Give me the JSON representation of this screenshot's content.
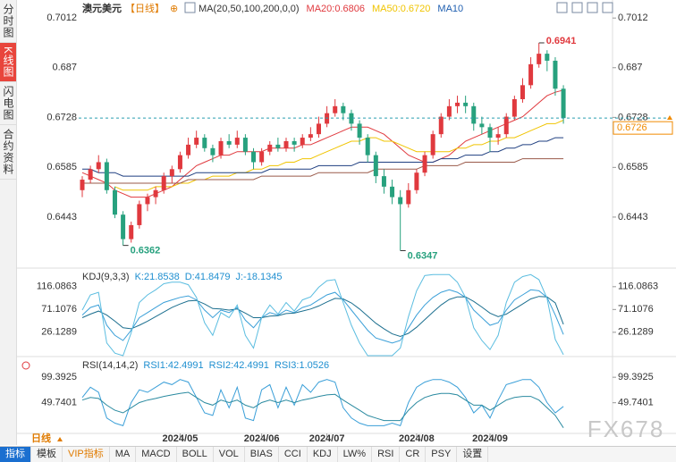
{
  "header": {
    "symbol": "澳元美元",
    "period": "【日线】",
    "legend": [
      {
        "text": "MA(20,50,100,200,0,0)",
        "color": "#333333"
      },
      {
        "text": "MA20:0.6806",
        "color": "#e0393e"
      },
      {
        "text": "MA50:0.6720",
        "color": "#f0c400"
      },
      {
        "text": "MA10",
        "color": "#1f5fb0"
      }
    ]
  },
  "side_tabs": [
    "分时图",
    "K线图",
    "闪电图",
    "合约资料"
  ],
  "period_label": "日线",
  "footer": {
    "tabs": [
      "指标",
      "模板",
      "VIP指标",
      "MA",
      "MACD",
      "BOLL",
      "VOL",
      "BIAS",
      "CCI",
      "KDJ",
      "LW%",
      "RSI",
      "CR",
      "PSY",
      "设置"
    ]
  },
  "watermark": "FX678",
  "chart_data": [
    {
      "type": "candlestick",
      "up_color": "#e0393e",
      "down_color": "#27a17e",
      "ylim": [
        0.631,
        0.7038
      ],
      "yticks": [
        0.7012,
        0.687,
        0.6728,
        0.6585,
        0.6443
      ],
      "candles": [
        [
          0.652,
          0.656,
          0.65,
          0.655
        ],
        [
          0.655,
          0.659,
          0.654,
          0.658
        ],
        [
          0.658,
          0.662,
          0.657,
          0.66
        ],
        [
          0.66,
          0.661,
          0.651,
          0.652
        ],
        [
          0.652,
          0.653,
          0.644,
          0.645
        ],
        [
          0.645,
          0.646,
          0.6362,
          0.638
        ],
        [
          0.638,
          0.643,
          0.637,
          0.642
        ],
        [
          0.642,
          0.649,
          0.641,
          0.648
        ],
        [
          0.648,
          0.651,
          0.646,
          0.65
        ],
        [
          0.65,
          0.653,
          0.648,
          0.652
        ],
        [
          0.652,
          0.657,
          0.651,
          0.656
        ],
        [
          0.656,
          0.659,
          0.654,
          0.658
        ],
        [
          0.658,
          0.663,
          0.657,
          0.662
        ],
        [
          0.662,
          0.667,
          0.661,
          0.665
        ],
        [
          0.665,
          0.669,
          0.664,
          0.667
        ],
        [
          0.667,
          0.668,
          0.663,
          0.664
        ],
        [
          0.664,
          0.665,
          0.66,
          0.662
        ],
        [
          0.662,
          0.667,
          0.661,
          0.666
        ],
        [
          0.666,
          0.668,
          0.664,
          0.665
        ],
        [
          0.665,
          0.669,
          0.664,
          0.667
        ],
        [
          0.667,
          0.668,
          0.662,
          0.663
        ],
        [
          0.663,
          0.664,
          0.658,
          0.66
        ],
        [
          0.66,
          0.664,
          0.659,
          0.663
        ],
        [
          0.663,
          0.666,
          0.662,
          0.665
        ],
        [
          0.665,
          0.667,
          0.663,
          0.664
        ],
        [
          0.664,
          0.667,
          0.663,
          0.666
        ],
        [
          0.666,
          0.667,
          0.663,
          0.665
        ],
        [
          0.665,
          0.668,
          0.664,
          0.667
        ],
        [
          0.667,
          0.67,
          0.666,
          0.668
        ],
        [
          0.668,
          0.673,
          0.667,
          0.671
        ],
        [
          0.671,
          0.676,
          0.67,
          0.674
        ],
        [
          0.674,
          0.678,
          0.673,
          0.676
        ],
        [
          0.676,
          0.677,
          0.672,
          0.674
        ],
        [
          0.674,
          0.675,
          0.669,
          0.671
        ],
        [
          0.671,
          0.672,
          0.665,
          0.667
        ],
        [
          0.667,
          0.668,
          0.66,
          0.662
        ],
        [
          0.662,
          0.663,
          0.654,
          0.656
        ],
        [
          0.656,
          0.658,
          0.651,
          0.653
        ],
        [
          0.653,
          0.655,
          0.648,
          0.65
        ],
        [
          0.65,
          0.652,
          0.6347,
          0.648
        ],
        [
          0.648,
          0.654,
          0.647,
          0.652
        ],
        [
          0.652,
          0.658,
          0.651,
          0.657
        ],
        [
          0.657,
          0.663,
          0.656,
          0.662
        ],
        [
          0.662,
          0.669,
          0.661,
          0.668
        ],
        [
          0.668,
          0.674,
          0.667,
          0.673
        ],
        [
          0.673,
          0.678,
          0.672,
          0.676
        ],
        [
          0.676,
          0.679,
          0.674,
          0.677
        ],
        [
          0.677,
          0.679,
          0.674,
          0.676
        ],
        [
          0.676,
          0.677,
          0.669,
          0.671
        ],
        [
          0.671,
          0.673,
          0.668,
          0.67
        ],
        [
          0.67,
          0.671,
          0.663,
          0.667
        ],
        [
          0.667,
          0.67,
          0.665,
          0.668
        ],
        [
          0.668,
          0.674,
          0.667,
          0.673
        ],
        [
          0.673,
          0.679,
          0.672,
          0.678
        ],
        [
          0.678,
          0.684,
          0.677,
          0.682
        ],
        [
          0.682,
          0.69,
          0.681,
          0.688
        ],
        [
          0.688,
          0.6941,
          0.687,
          0.691
        ],
        [
          0.691,
          0.692,
          0.686,
          0.689
        ],
        [
          0.689,
          0.69,
          0.679,
          0.681
        ],
        [
          0.681,
          0.682,
          0.671,
          0.6726
        ]
      ],
      "series": [
        {
          "color": "#e0393e",
          "values": [
            0.657,
            0.656,
            0.655,
            0.654,
            0.652,
            0.651,
            0.65,
            0.65,
            0.65,
            0.651,
            0.652,
            0.653,
            0.655,
            0.657,
            0.659,
            0.66,
            0.661,
            0.662,
            0.662,
            0.663,
            0.663,
            0.663,
            0.663,
            0.664,
            0.664,
            0.664,
            0.664,
            0.665,
            0.665,
            0.666,
            0.667,
            0.668,
            0.669,
            0.67,
            0.67,
            0.67,
            0.669,
            0.668,
            0.666,
            0.664,
            0.662,
            0.661,
            0.66,
            0.66,
            0.661,
            0.662,
            0.664,
            0.666,
            0.667,
            0.668,
            0.669,
            0.67,
            0.671,
            0.672,
            0.673,
            0.675,
            0.677,
            0.679,
            0.68,
            0.6806
          ]
        },
        {
          "color": "#f0c400",
          "values": [
            null,
            null,
            null,
            null,
            0.653,
            0.652,
            0.652,
            0.652,
            0.652,
            0.653,
            0.653,
            0.653,
            0.654,
            0.654,
            0.655,
            0.655,
            0.656,
            0.656,
            0.656,
            0.657,
            0.657,
            0.658,
            0.658,
            0.659,
            0.659,
            0.66,
            0.66,
            0.661,
            0.661,
            0.662,
            0.663,
            0.664,
            0.665,
            0.666,
            0.666,
            0.667,
            0.667,
            0.666,
            0.666,
            0.665,
            0.664,
            0.663,
            0.663,
            0.663,
            0.663,
            0.663,
            0.664,
            0.664,
            0.665,
            0.665,
            0.666,
            0.666,
            0.667,
            0.667,
            0.668,
            0.669,
            0.67,
            0.671,
            0.671,
            0.672
          ]
        },
        {
          "color": "#1f3f80",
          "values": [
            0.658,
            0.658,
            0.657,
            0.657,
            0.657,
            0.656,
            0.656,
            0.656,
            0.656,
            0.656,
            0.656,
            0.656,
            0.656,
            0.656,
            0.657,
            0.657,
            0.657,
            0.657,
            0.657,
            0.657,
            0.657,
            0.657,
            0.657,
            0.658,
            0.658,
            0.658,
            0.658,
            0.658,
            0.658,
            0.659,
            0.659,
            0.659,
            0.659,
            0.659,
            0.66,
            0.66,
            0.66,
            0.66,
            0.66,
            0.66,
            0.66,
            0.66,
            0.66,
            0.66,
            0.661,
            0.661,
            0.661,
            0.662,
            0.662,
            0.662,
            0.663,
            0.663,
            0.664,
            0.664,
            0.665,
            0.665,
            0.666,
            0.666,
            0.667,
            0.667
          ]
        },
        {
          "color": "#9a5a4a",
          "values": [
            0.654,
            0.654,
            0.654,
            0.654,
            0.654,
            0.654,
            0.654,
            0.654,
            0.654,
            0.654,
            0.654,
            0.654,
            0.654,
            0.655,
            0.655,
            0.655,
            0.655,
            0.655,
            0.655,
            0.655,
            0.655,
            0.655,
            0.656,
            0.656,
            0.656,
            0.656,
            0.656,
            0.656,
            0.656,
            0.657,
            0.657,
            0.657,
            0.657,
            0.657,
            0.657,
            0.657,
            0.658,
            0.658,
            0.658,
            0.658,
            0.658,
            0.658,
            0.659,
            0.659,
            0.659,
            0.659,
            0.659,
            0.66,
            0.66,
            0.66,
            0.66,
            0.66,
            0.66,
            0.66,
            0.661,
            0.661,
            0.661,
            0.661,
            0.661,
            0.661
          ]
        }
      ],
      "last": 0.6726,
      "annotations": [
        {
          "value": 0.6941,
          "index": 56,
          "color": "#e0393e"
        },
        {
          "value": 0.6362,
          "index": 5,
          "color": "#27a17e"
        },
        {
          "value": 0.6347,
          "index": 39,
          "color": "#27a17e"
        }
      ]
    },
    {
      "type": "line",
      "legend": [
        {
          "text": "KDJ(9,3,3)",
          "color": "#333333"
        },
        {
          "text": "K:21.8538",
          "color": "#1f8fd0"
        },
        {
          "text": "D:41.8479",
          "color": "#1f8fd0"
        },
        {
          "text": "J:-18.1345",
          "color": "#1f8fd0"
        }
      ],
      "ylim": [
        -20,
        144
      ],
      "yticks": [
        116.0863,
        71.1076,
        26.1289
      ],
      "series": [
        {
          "color": "#3a9fd8",
          "values": [
            60,
            75,
            80,
            40,
            20,
            10,
            30,
            55,
            65,
            75,
            85,
            90,
            95,
            98,
            90,
            70,
            55,
            70,
            65,
            75,
            50,
            35,
            55,
            65,
            60,
            70,
            65,
            75,
            80,
            90,
            100,
            105,
            90,
            70,
            50,
            30,
            15,
            10,
            5,
            10,
            35,
            60,
            80,
            95,
            105,
            110,
            105,
            95,
            70,
            55,
            40,
            45,
            70,
            90,
            100,
            110,
            108,
            95,
            60,
            21.8538
          ]
        },
        {
          "color": "#1c6f8f",
          "values": [
            55,
            62,
            68,
            60,
            48,
            35,
            33,
            40,
            48,
            57,
            66,
            75,
            82,
            88,
            89,
            82,
            73,
            72,
            70,
            72,
            64,
            55,
            55,
            58,
            59,
            63,
            64,
            68,
            72,
            78,
            86,
            93,
            92,
            84,
            72,
            58,
            44,
            33,
            23,
            18,
            24,
            36,
            51,
            66,
            80,
            91,
            96,
            96,
            87,
            76,
            64,
            57,
            62,
            72,
            82,
            92,
            97,
            96,
            84,
            41.8479
          ]
        },
        {
          "color": "#5bbde0",
          "values": [
            70,
            100,
            105,
            5,
            -15,
            -20,
            25,
            85,
            100,
            110,
            122,
            125,
            125,
            120,
            95,
            45,
            20,
            65,
            55,
            80,
            20,
            -5,
            55,
            80,
            62,
            85,
            68,
            90,
            96,
            115,
            128,
            130,
            85,
            40,
            5,
            -20,
            -20,
            -20,
            -20,
            -5,
            57,
            108,
            138,
            140,
            140,
            140,
            125,
            95,
            35,
            10,
            -8,
            20,
            85,
            125,
            136,
            140,
            130,
            93,
            12,
            -18.1345
          ]
        }
      ]
    },
    {
      "type": "line",
      "legend": [
        {
          "text": "RSI(14,14,2)",
          "color": "#333333"
        },
        {
          "text": "RSI1:42.4991",
          "color": "#1f8fd0"
        },
        {
          "text": "RSI2:42.4991",
          "color": "#1f8fd0"
        },
        {
          "text": "RSI3:1.0526",
          "color": "#1f8fd0"
        }
      ],
      "ylim": [
        -10,
        131
      ],
      "yticks": [
        99.3925,
        49.7401
      ],
      "series": [
        {
          "color": "#3a9fd8",
          "values": [
            60,
            80,
            70,
            20,
            10,
            5,
            50,
            75,
            70,
            80,
            90,
            85,
            95,
            90,
            60,
            30,
            25,
            75,
            40,
            80,
            20,
            15,
            75,
            85,
            40,
            80,
            45,
            85,
            70,
            90,
            95,
            90,
            40,
            20,
            10,
            5,
            5,
            5,
            10,
            5,
            50,
            80,
            90,
            95,
            95,
            90,
            80,
            60,
            30,
            45,
            20,
            55,
            85,
            90,
            95,
            95,
            80,
            50,
            30,
            42.4991
          ]
        },
        {
          "color": "#2a8aa0",
          "values": [
            55,
            60,
            58,
            45,
            35,
            30,
            40,
            50,
            55,
            58,
            62,
            65,
            68,
            70,
            60,
            50,
            45,
            55,
            50,
            55,
            45,
            40,
            50,
            55,
            50,
            55,
            50,
            55,
            58,
            62,
            65,
            66,
            55,
            45,
            35,
            25,
            20,
            15,
            15,
            15,
            35,
            50,
            60,
            65,
            68,
            68,
            65,
            55,
            45,
            45,
            35,
            45,
            55,
            60,
            62,
            62,
            55,
            40,
            25,
            1.0526
          ]
        }
      ],
      "xticks": [
        {
          "value": 12,
          "label": "2024/05"
        },
        {
          "value": 22,
          "label": "2024/06"
        },
        {
          "value": 30,
          "label": "2024/07"
        },
        {
          "value": 41,
          "label": "2024/08"
        },
        {
          "value": 50,
          "label": "2024/09"
        }
      ]
    }
  ]
}
